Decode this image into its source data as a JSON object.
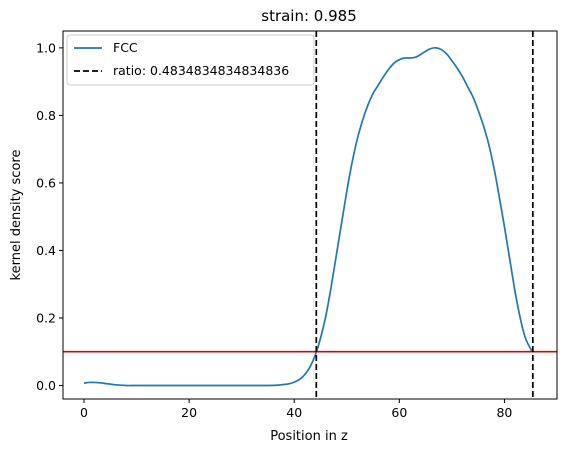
{
  "chart_data": {
    "type": "line",
    "title": "strain: 0.985",
    "xlabel": "Position in z",
    "ylabel": "kernel density score",
    "xlim": [
      -4,
      90
    ],
    "ylim": [
      -0.04,
      1.05
    ],
    "xticks": [
      0,
      20,
      40,
      60,
      80
    ],
    "yticks": [
      0.0,
      0.2,
      0.4,
      0.6,
      0.8,
      1.0
    ],
    "xtick_labels": [
      "0",
      "20",
      "40",
      "60",
      "80"
    ],
    "ytick_labels": [
      "0.0",
      "0.2",
      "0.4",
      "0.6",
      "0.8",
      "1.0"
    ],
    "grid": false,
    "legend_position": "top-left",
    "series": [
      {
        "name": "FCC",
        "color": "#1f77b4",
        "style": "solid",
        "x": [
          0,
          1,
          2,
          3,
          4,
          5,
          6,
          8,
          10,
          15,
          20,
          25,
          30,
          35,
          37,
          38,
          39,
          40,
          41,
          42,
          43,
          44,
          45,
          46,
          47,
          48,
          49,
          50,
          51,
          52,
          53,
          54,
          55,
          56,
          57,
          58,
          59,
          60,
          61,
          62,
          63,
          64,
          65,
          66,
          67,
          68,
          69,
          70,
          71,
          72,
          73,
          74,
          75,
          76,
          77,
          78,
          79,
          80,
          81,
          82,
          83,
          84,
          85.3
        ],
        "y": [
          0.007,
          0.009,
          0.009,
          0.008,
          0.006,
          0.004,
          0.002,
          0.0,
          0.0,
          0.0,
          0.0,
          0.0,
          0.0,
          0.0,
          0.001,
          0.003,
          0.005,
          0.01,
          0.018,
          0.032,
          0.055,
          0.09,
          0.14,
          0.205,
          0.29,
          0.385,
          0.48,
          0.575,
          0.66,
          0.73,
          0.785,
          0.83,
          0.865,
          0.89,
          0.915,
          0.937,
          0.955,
          0.965,
          0.97,
          0.97,
          0.972,
          0.98,
          0.99,
          0.998,
          1.0,
          0.995,
          0.982,
          0.962,
          0.94,
          0.915,
          0.885,
          0.855,
          0.815,
          0.77,
          0.715,
          0.645,
          0.56,
          0.47,
          0.375,
          0.28,
          0.2,
          0.14,
          0.1
        ]
      },
      {
        "name": "ratio: 0.4834834834834836",
        "color": "#000000",
        "style": "dashed",
        "vlines": [
          44.2,
          85.4
        ]
      }
    ],
    "hline": {
      "y": 0.1,
      "color": "#e00000"
    }
  }
}
